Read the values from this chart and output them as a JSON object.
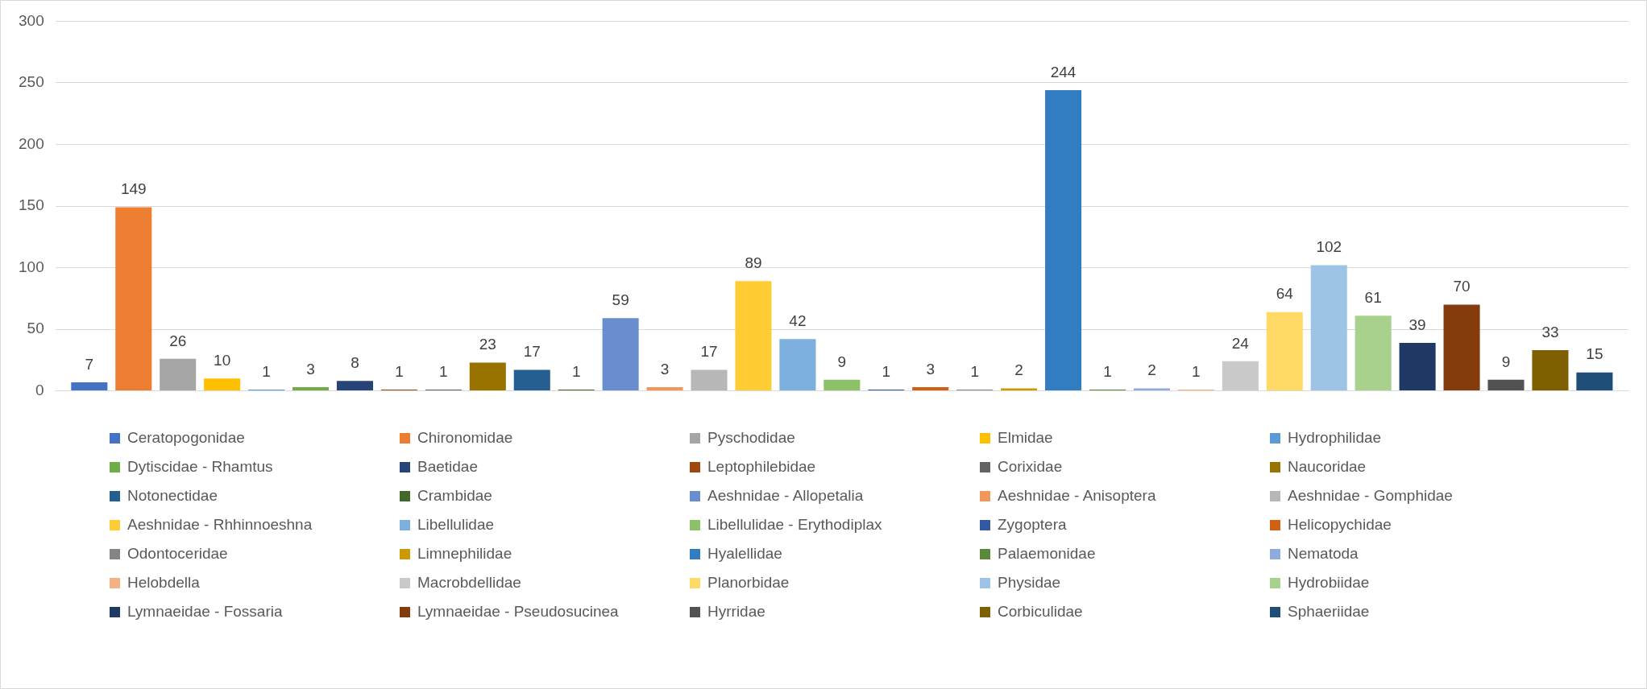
{
  "chart_data": {
    "type": "bar",
    "categories": [
      null
    ],
    "ylim": [
      0,
      300
    ],
    "yticks": [
      0,
      50,
      100,
      150,
      200,
      250,
      300
    ],
    "grid": "y",
    "legend": "bottom",
    "data_labels": true,
    "series": [
      {
        "name": "Ceratopogonidae",
        "color": "#4472c4",
        "values": [
          7
        ]
      },
      {
        "name": "Chironomidae",
        "color": "#ed7d31",
        "values": [
          149
        ]
      },
      {
        "name": "Pyschodidae",
        "color": "#a5a5a5",
        "values": [
          26
        ]
      },
      {
        "name": "Elmidae",
        "color": "#ffc000",
        "values": [
          10
        ]
      },
      {
        "name": "Hydrophilidae",
        "color": "#5b9bd5",
        "values": [
          1
        ]
      },
      {
        "name": "Dytiscidae - Rhamtus",
        "color": "#70ad47",
        "values": [
          3
        ]
      },
      {
        "name": "Baetidae",
        "color": "#264478",
        "values": [
          8
        ]
      },
      {
        "name": "Leptophilebidae",
        "color": "#9e480e",
        "values": [
          1
        ]
      },
      {
        "name": "Corixidae",
        "color": "#636363",
        "values": [
          1
        ]
      },
      {
        "name": "Naucoridae",
        "color": "#997300",
        "values": [
          23
        ]
      },
      {
        "name": "Notonectidae",
        "color": "#255e91",
        "values": [
          17
        ]
      },
      {
        "name": "Crambidae",
        "color": "#43682b",
        "values": [
          1
        ]
      },
      {
        "name": "Aeshnidae - Allopetalia",
        "color": "#698ed0",
        "values": [
          59
        ]
      },
      {
        "name": "Aeshnidae - Anisoptera",
        "color": "#f1975a",
        "values": [
          3
        ]
      },
      {
        "name": "Aeshnidae - Gomphidae",
        "color": "#b7b7b7",
        "values": [
          17
        ]
      },
      {
        "name": "Aeshnidae - Rhhinnoeshna",
        "color": "#ffcd33",
        "values": [
          89
        ]
      },
      {
        "name": "Libellulidae",
        "color": "#7cafdd",
        "values": [
          42
        ]
      },
      {
        "name": "Libellulidae - Erythodiplax",
        "color": "#8cc168",
        "values": [
          9
        ]
      },
      {
        "name": "Zygoptera",
        "color": "#335aa1",
        "values": [
          1
        ]
      },
      {
        "name": "Helicopychidae",
        "color": "#d26012",
        "values": [
          3
        ]
      },
      {
        "name": "Odontoceridae",
        "color": "#848484",
        "values": [
          1
        ]
      },
      {
        "name": "Limnephilidae",
        "color": "#cc9a00",
        "values": [
          2
        ]
      },
      {
        "name": "Hyalellidae",
        "color": "#327dc2",
        "values": [
          244
        ]
      },
      {
        "name": "Palaemonidae",
        "color": "#5a8a39",
        "values": [
          1
        ]
      },
      {
        "name": "Nematoda",
        "color": "#8faadc",
        "values": [
          2
        ]
      },
      {
        "name": "Helobdella",
        "color": "#f4b183",
        "values": [
          1
        ]
      },
      {
        "name": "Macrobdellidae",
        "color": "#c9c9c9",
        "values": [
          24
        ]
      },
      {
        "name": "Planorbidae",
        "color": "#ffd966",
        "values": [
          64
        ]
      },
      {
        "name": "Physidae",
        "color": "#9dc3e6",
        "values": [
          102
        ]
      },
      {
        "name": "Hydrobiidae",
        "color": "#a9d18e",
        "values": [
          61
        ]
      },
      {
        "name": "Lymnaeidae - Fossaria",
        "color": "#203864",
        "values": [
          39
        ]
      },
      {
        "name": "Lymnaeidae - Pseudosucinea",
        "color": "#843c0c",
        "values": [
          70
        ]
      },
      {
        "name": "Hyrridae",
        "color": "#525252",
        "values": [
          9
        ]
      },
      {
        "name": "Corbiculidae",
        "color": "#7f6000",
        "values": [
          33
        ]
      },
      {
        "name": "Sphaeriidae",
        "color": "#1f4e79",
        "values": [
          15
        ]
      }
    ]
  }
}
